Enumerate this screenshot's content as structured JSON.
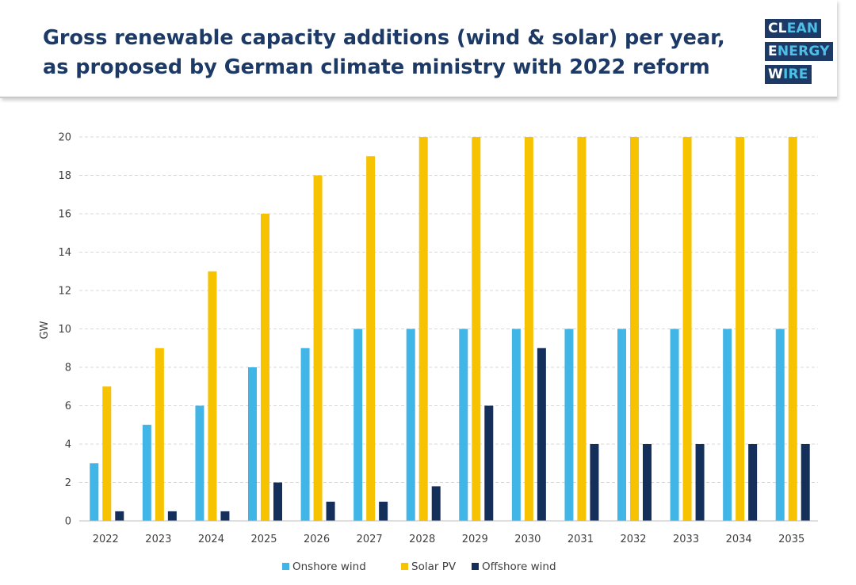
{
  "header": {
    "title_line1": "Gross renewable capacity additions (wind & solar) per year,",
    "title_line2": "as proposed by German climate ministry with 2022 reform"
  },
  "logo": {
    "line1_first": "CL",
    "line1_rest": "EAN",
    "line2_first": "E",
    "line2_rest": "NERGY",
    "line3_first": "W",
    "line3_rest": "IRE"
  },
  "chart_data": {
    "type": "bar",
    "categories": [
      "2022",
      "2023",
      "2024",
      "2025",
      "2026",
      "2027",
      "2028",
      "2029",
      "2030",
      "2031",
      "2032",
      "2033",
      "2034",
      "2035"
    ],
    "series": [
      {
        "name": "Onshore wind",
        "color": "#41b6e6",
        "values": [
          3,
          5,
          6,
          8,
          9,
          10,
          10,
          10,
          10,
          10,
          10,
          10,
          10,
          10
        ]
      },
      {
        "name": "Solar PV",
        "color": "#f7c200",
        "values": [
          7,
          9,
          13,
          16,
          18,
          19,
          20,
          20,
          20,
          20,
          20,
          20,
          20,
          20
        ]
      },
      {
        "name": "Offshore wind",
        "color": "#14305a",
        "values": [
          0.5,
          0.5,
          0.5,
          2,
          1,
          1,
          1.8,
          6,
          9,
          4,
          4,
          4,
          4,
          4
        ]
      }
    ],
    "ylabel": "GW",
    "ylim": [
      0,
      20
    ],
    "yticks": [
      0,
      2,
      4,
      6,
      8,
      10,
      12,
      14,
      16,
      18,
      20
    ],
    "grid": true,
    "legend": "bottom"
  }
}
